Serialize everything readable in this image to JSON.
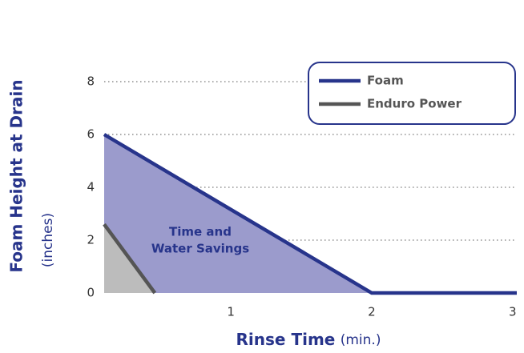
{
  "chart_data": {
    "type": "line",
    "x_label": "Rinse Time",
    "x_label_unit": "(min.)",
    "y_label": "Foam Height at Drain",
    "y_label_unit": "(inches)",
    "xlim": [
      0.1,
      3.03
    ],
    "xticks": [
      1,
      2,
      3
    ],
    "ylim": [
      0,
      8
    ],
    "yticks": [
      0,
      2,
      4,
      6,
      8
    ],
    "grid": true,
    "legend": "upper right",
    "annotation": [
      "Time and",
      "Water Savings"
    ],
    "series": [
      {
        "name": "Foam",
        "color": "#27348b",
        "fill": "#9b9bcc",
        "x": [
          0.1,
          2,
          3.03
        ],
        "values": [
          6,
          0,
          0
        ]
      },
      {
        "name": "Enduro Power",
        "color": "#555555",
        "fill": "#bcbcbc",
        "x": [
          0.1,
          0.46
        ],
        "values": [
          2.6,
          0
        ]
      }
    ]
  }
}
